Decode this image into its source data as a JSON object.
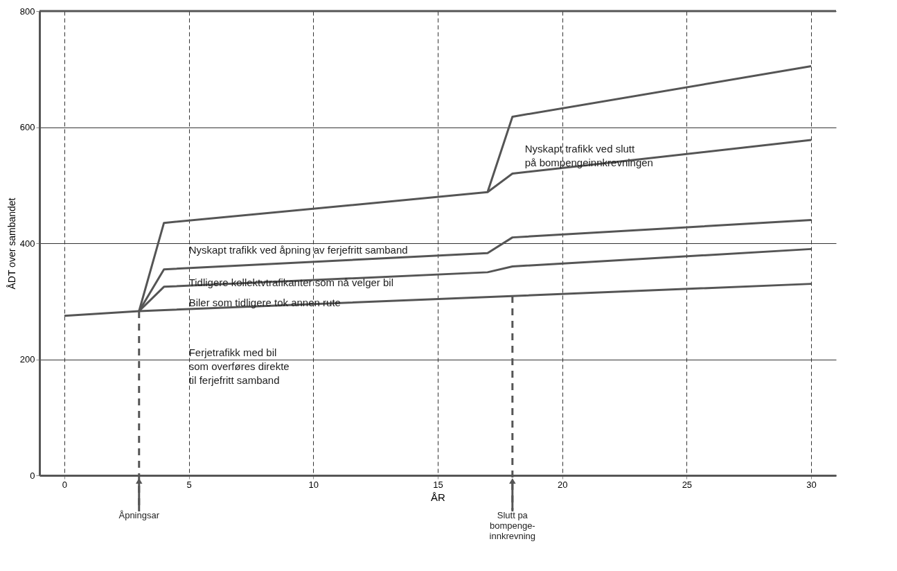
{
  "chart_data": {
    "type": "line",
    "xlabel": "ÅR",
    "ylabel": "ÅDT over sambandet",
    "xlim": [
      -1,
      31
    ],
    "ylim": [
      0,
      800
    ],
    "xticks": [
      0,
      5,
      10,
      15,
      20,
      25,
      30
    ],
    "yticks": [
      0,
      200,
      400,
      600,
      800
    ],
    "grid": true,
    "marker": "none",
    "line_style": "solid",
    "series": [
      {
        "color": "#555555",
        "x": [
          0,
          3,
          30
        ],
        "values": [
          275,
          283,
          330
        ]
      },
      {
        "color": "#555555",
        "x": [
          3,
          4,
          17,
          18,
          30
        ],
        "values": [
          283,
          325,
          350,
          360,
          390
        ]
      },
      {
        "color": "#555555",
        "x": [
          3,
          4,
          17,
          18,
          30
        ],
        "values": [
          283,
          355,
          383,
          410,
          440
        ]
      },
      {
        "color": "#555555",
        "x": [
          3,
          4,
          17,
          18,
          30
        ],
        "values": [
          283,
          435,
          488,
          520,
          578
        ]
      },
      {
        "color": "#555555",
        "x": [
          17,
          18,
          30
        ],
        "values": [
          488,
          618,
          705
        ]
      }
    ],
    "ref_lines": [
      {
        "axis": "x",
        "value": 3,
        "label": "Åpningsar",
        "color": "#555555",
        "line_style": "dashed"
      },
      {
        "axis": "x",
        "value": 18,
        "label": "Slutt pa\nbompenge-\ninnkrevning",
        "color": "#555555",
        "line_style": "dashed"
      }
    ],
    "annotations": [
      "Nyskapt trafikk ved slutt\npå bompengeinnkrevningen",
      "Nyskapt trafikk ved åpning av ferjefritt samband",
      "Tidligere kollektvtrafikanter som nå velger bil",
      "Biler som tidligere tok annen rute",
      "Ferjetrafikk med bil\nsom overføres direkte\ntil ferjefritt samband"
    ]
  }
}
